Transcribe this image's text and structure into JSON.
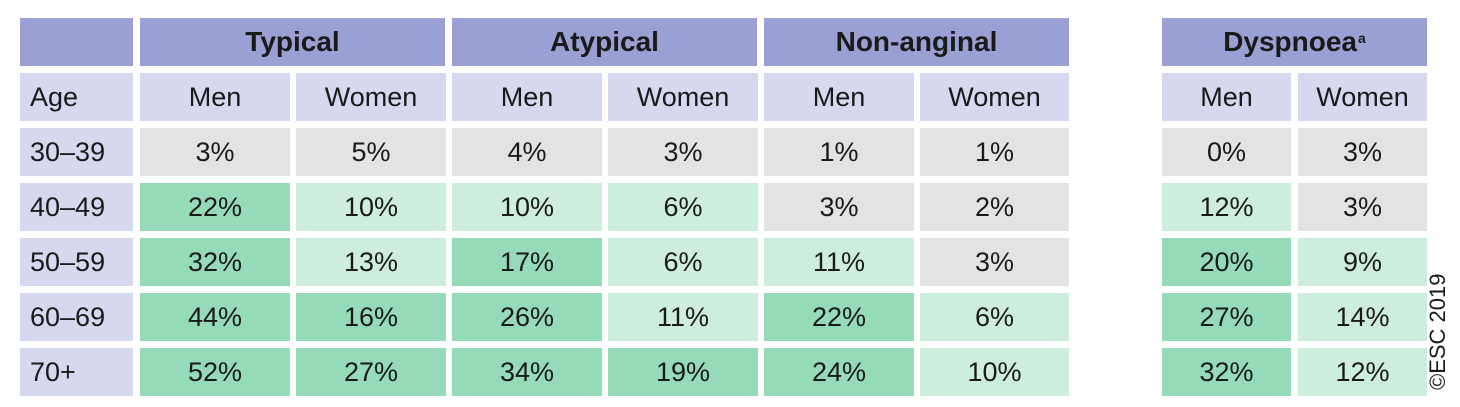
{
  "header": {
    "groups": [
      "Typical",
      "Atypical",
      "Non-anginal"
    ],
    "dyspnoea": "Dyspnoea",
    "dyspnoea_sup": "a"
  },
  "subheader": {
    "age": "Age",
    "sex": [
      "Men",
      "Women",
      "Men",
      "Women",
      "Men",
      "Women",
      "Men",
      "Women"
    ]
  },
  "rows": [
    {
      "age": "30–39",
      "values": [
        "3%",
        "5%",
        "4%",
        "3%",
        "1%",
        "1%",
        "0%",
        "3%"
      ]
    },
    {
      "age": "40–49",
      "values": [
        "22%",
        "10%",
        "10%",
        "6%",
        "3%",
        "2%",
        "12%",
        "3%"
      ]
    },
    {
      "age": "50–59",
      "values": [
        "32%",
        "13%",
        "17%",
        "6%",
        "11%",
        "3%",
        "20%",
        "9%"
      ]
    },
    {
      "age": "60–69",
      "values": [
        "44%",
        "16%",
        "26%",
        "11%",
        "22%",
        "6%",
        "27%",
        "14%"
      ]
    },
    {
      "age": "70+",
      "values": [
        "52%",
        "27%",
        "34%",
        "19%",
        "24%",
        "10%",
        "32%",
        "12%"
      ]
    }
  ],
  "shading": [
    [
      "gray",
      "gray",
      "gray",
      "gray",
      "gray",
      "gray",
      "gray",
      "gray"
    ],
    [
      "dark",
      "light",
      "light",
      "light",
      "gray",
      "gray",
      "light",
      "gray"
    ],
    [
      "dark",
      "light",
      "dark",
      "light",
      "light",
      "gray",
      "dark",
      "light"
    ],
    [
      "dark",
      "dark",
      "dark",
      "light",
      "dark",
      "light",
      "dark",
      "light"
    ],
    [
      "dark",
      "dark",
      "dark",
      "dark",
      "dark",
      "light",
      "dark",
      "light"
    ]
  ],
  "colors": {
    "header_bg": "#9ba0d4",
    "subheader_bg": "#d6d8f0",
    "gray": "#e3e3e3",
    "light_green": "#cdeedd",
    "dark_green": "#96dbb8"
  },
  "copyright": "©ESC 2019"
}
